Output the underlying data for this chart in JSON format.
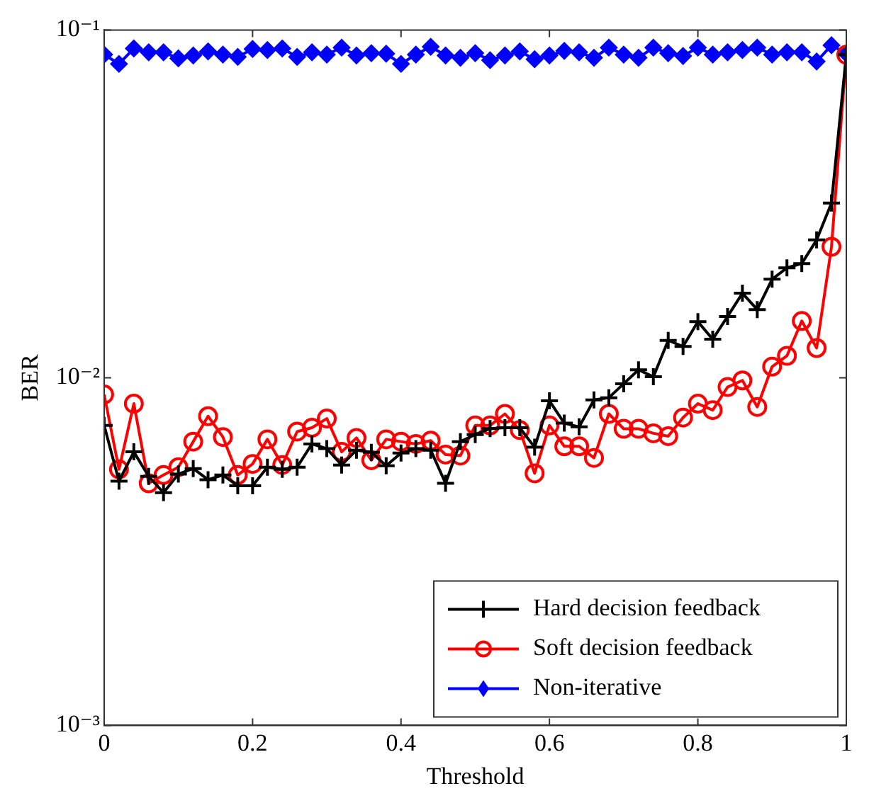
{
  "chart_data": {
    "type": "line",
    "xlabel": "Threshold",
    "ylabel": "BER",
    "x": [
      0,
      0.02,
      0.04,
      0.06,
      0.08,
      0.1,
      0.12,
      0.14,
      0.16,
      0.18,
      0.2,
      0.22,
      0.24,
      0.26,
      0.28,
      0.3,
      0.32,
      0.34,
      0.36,
      0.38,
      0.4,
      0.42,
      0.44,
      0.46,
      0.48,
      0.5,
      0.52,
      0.54,
      0.56,
      0.58,
      0.6,
      0.62,
      0.64,
      0.66,
      0.68,
      0.7,
      0.72,
      0.74,
      0.76,
      0.78,
      0.8,
      0.82,
      0.84,
      0.86,
      0.88,
      0.9,
      0.92,
      0.94,
      0.96,
      0.98,
      1
    ],
    "series": [
      {
        "name": "Hard decision feedback",
        "color": "#000000",
        "marker": "cross",
        "values": [
          0.00729,
          0.00504,
          0.00612,
          0.0052,
          0.00467,
          0.00528,
          0.00548,
          0.00509,
          0.00525,
          0.00489,
          0.00489,
          0.00553,
          0.00545,
          0.00553,
          0.00645,
          0.00625,
          0.00561,
          0.00619,
          0.0061,
          0.00558,
          0.00607,
          0.00625,
          0.00619,
          0.00497,
          0.00655,
          0.00686,
          0.00714,
          0.00718,
          0.00718,
          0.00631,
          0.00858,
          0.0074,
          0.00722,
          0.00863,
          0.00876,
          0.00961,
          0.01054,
          0.01006,
          0.0128,
          0.0123,
          0.0145,
          0.0129,
          0.015,
          0.0175,
          0.0157,
          0.0192,
          0.0207,
          0.0213,
          0.0249,
          0.0318,
          0.0849
        ]
      },
      {
        "name": "Soft decision feedback",
        "color": "#ff0000",
        "marker": "circle",
        "values": [
          0.00895,
          0.00545,
          0.00842,
          0.00497,
          0.00525,
          0.00553,
          0.00655,
          0.00775,
          0.00675,
          0.00525,
          0.00565,
          0.00665,
          0.00561,
          0.007,
          0.00718,
          0.00763,
          0.00612,
          0.00671,
          0.00579,
          0.00665,
          0.00655,
          0.00645,
          0.00659,
          0.00601,
          0.00597,
          0.00729,
          0.00729,
          0.00787,
          0.00707,
          0.00531,
          0.00729,
          0.00635,
          0.00635,
          0.00588,
          0.00787,
          0.00713,
          0.00713,
          0.00692,
          0.00679,
          0.00768,
          0.00842,
          0.00807,
          0.0094,
          0.00982,
          0.00824,
          0.01076,
          0.01156,
          0.01456,
          0.01217,
          0.0238,
          0.0849
        ]
      },
      {
        "name": "Non-iterative",
        "color": "#0000ff",
        "marker": "diamond",
        "values": [
          0.085,
          0.0799,
          0.0885,
          0.0863,
          0.0863,
          0.0829,
          0.0845,
          0.0868,
          0.085,
          0.0837,
          0.0882,
          0.0876,
          0.0885,
          0.0837,
          0.0863,
          0.085,
          0.089,
          0.0845,
          0.0858,
          0.0855,
          0.0799,
          0.085,
          0.0895,
          0.0845,
          0.0832,
          0.0858,
          0.0819,
          0.0845,
          0.0868,
          0.0824,
          0.0845,
          0.0871,
          0.0863,
          0.0832,
          0.089,
          0.085,
          0.0832,
          0.089,
          0.0858,
          0.0842,
          0.089,
          0.085,
          0.0863,
          0.0876,
          0.089,
          0.085,
          0.0863,
          0.0863,
          0.0812,
          0.0904,
          0.0855
        ]
      }
    ],
    "xlim": [
      0,
      1
    ],
    "xticks": [
      0,
      0.2,
      0.4,
      0.6,
      0.8,
      1
    ],
    "ylim": [
      0.001,
      0.1
    ],
    "yticks": [
      {
        "value": 0.001,
        "label": "10⁻³"
      },
      {
        "value": 0.01,
        "label": "10⁻²"
      },
      {
        "value": 0.1,
        "label": "10⁻¹"
      }
    ],
    "log": "y",
    "grid": false,
    "legend": "bottom right",
    "line_style": "solid"
  }
}
